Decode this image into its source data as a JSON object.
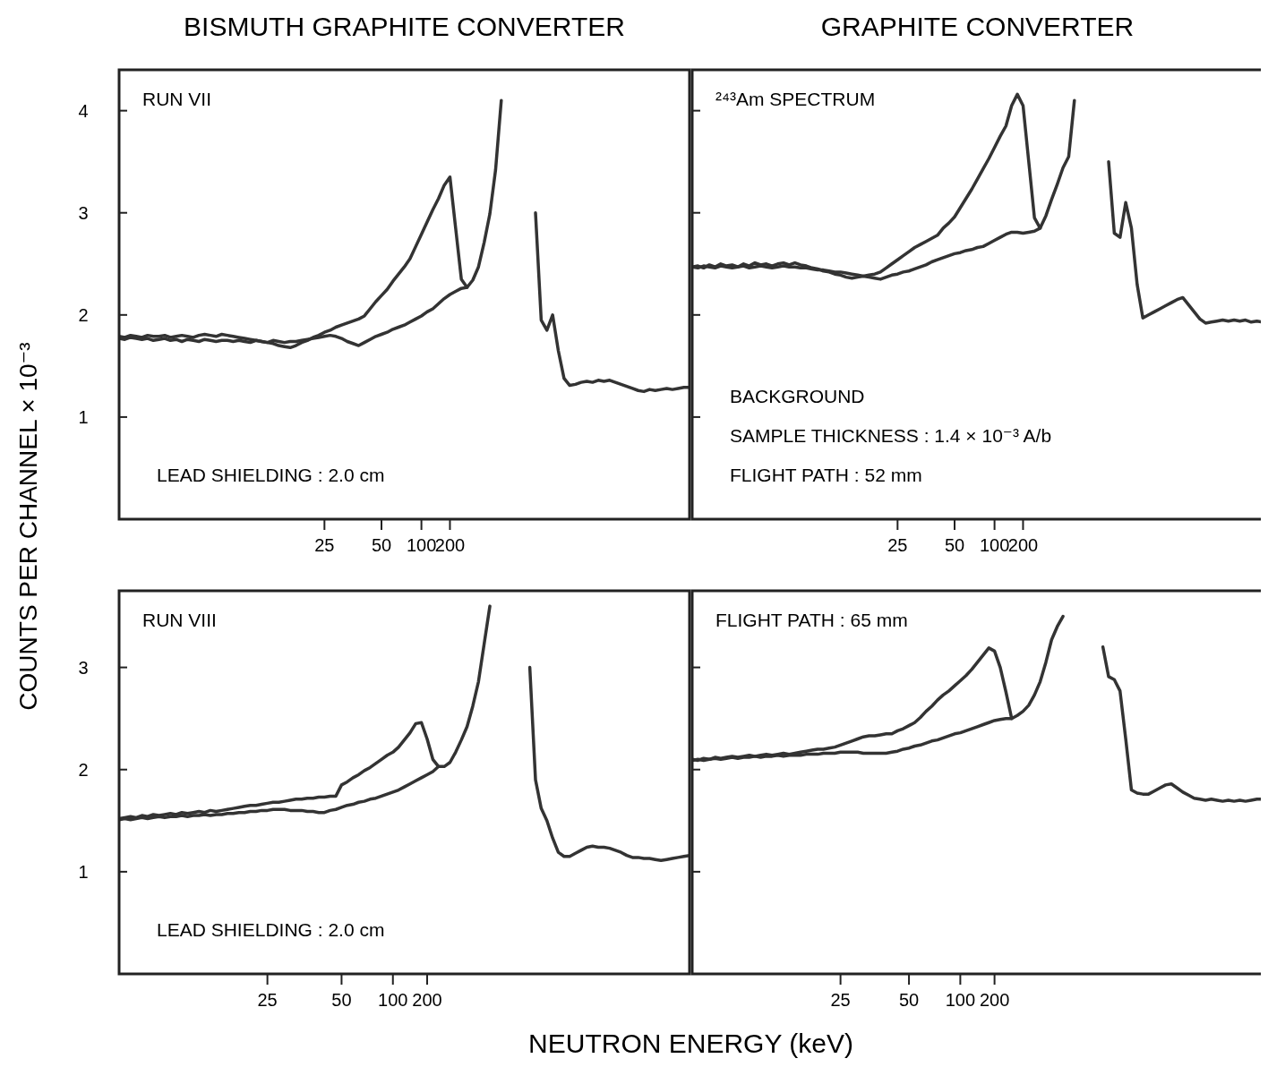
{
  "chart_data": [
    {
      "type": "line",
      "title": "BISMUTH GRAPHITE CONVERTER",
      "ylabel": "COUNTS PER CHANNEL   × 10⁻³",
      "annotations": [
        "RUN VII",
        "LEAD SHIELDING : 2.0 cm"
      ],
      "categories": [
        null,
        null,
        null,
        null,
        null,
        null,
        null,
        null,
        null,
        null,
        null,
        null,
        null,
        null,
        null,
        null,
        null,
        null,
        null,
        null,
        null,
        null,
        null,
        null,
        null,
        null,
        null,
        null,
        null,
        null,
        null,
        null,
        null,
        null,
        null,
        null,
        "25",
        null,
        null,
        null,
        null,
        null,
        null,
        null,
        null,
        null,
        "50",
        null,
        null,
        null,
        null,
        null,
        null,
        "100",
        null,
        null,
        null,
        null,
        "200",
        null,
        null,
        null,
        null,
        null,
        null,
        null,
        null,
        null,
        null,
        null,
        null,
        null,
        null,
        null,
        null,
        null,
        null,
        null,
        null,
        null,
        null,
        null,
        null,
        null,
        null,
        null,
        null,
        null,
        null,
        null,
        null,
        null,
        null,
        null,
        null,
        null,
        null,
        null,
        null,
        null,
        null
      ],
      "ylim": [
        0,
        4.4
      ],
      "yticks": [
        1,
        2,
        3,
        4
      ],
      "series": [
        {
          "color": "#333333",
          "values": [
            1.79,
            1.78,
            1.8,
            1.79,
            1.78,
            1.8,
            1.79,
            1.79,
            1.8,
            1.78,
            1.79,
            1.8,
            1.79,
            1.78,
            1.8,
            1.81,
            1.8,
            1.79,
            1.81,
            1.8,
            1.79,
            1.78,
            1.77,
            1.76,
            1.75,
            1.74,
            1.73,
            1.72,
            1.7,
            1.69,
            1.68,
            1.7,
            1.73,
            1.75,
            1.78,
            1.8,
            1.83,
            1.85,
            1.88,
            1.9,
            1.92,
            1.94,
            1.96,
            1.99,
            2.06,
            2.13,
            2.19,
            2.25,
            2.33,
            2.4,
            2.47,
            2.55,
            2.67,
            2.79,
            2.91,
            3.03,
            3.14,
            3.27,
            3.35,
            2.85,
            2.35,
            2.27,
            2.34,
            2.47,
            2.71,
            2.99,
            3.42,
            4.1,
            null,
            null,
            null,
            null,
            null,
            3.0,
            1.95,
            1.85,
            2.0,
            1.65,
            1.38,
            1.31,
            1.32,
            1.34,
            1.35,
            1.34,
            1.36,
            1.35,
            1.36,
            1.34,
            1.32,
            1.3,
            1.28,
            1.26,
            1.25,
            1.27,
            1.26,
            1.27,
            1.28,
            1.27,
            1.28,
            1.29,
            1.29
          ]
        },
        {
          "color": "#333333",
          "values": [
            1.77,
            1.76,
            1.78,
            1.77,
            1.76,
            1.77,
            1.75,
            1.76,
            1.77,
            1.75,
            1.76,
            1.74,
            1.76,
            1.75,
            1.74,
            1.76,
            1.75,
            1.74,
            1.75,
            1.75,
            1.74,
            1.75,
            1.74,
            1.73,
            1.75,
            1.74,
            1.73,
            1.75,
            1.74,
            1.73,
            1.74,
            1.74,
            1.75,
            1.76,
            1.77,
            1.78,
            1.79,
            1.8,
            1.79,
            1.77,
            1.74,
            1.72,
            1.7,
            1.73,
            1.76,
            1.79,
            1.81,
            1.83,
            1.86,
            1.88,
            1.9,
            1.93,
            1.96,
            1.99,
            2.03,
            2.06,
            2.11,
            2.16,
            2.2,
            2.23,
            2.26,
            2.27,
            null,
            null,
            null,
            null,
            null,
            null,
            null,
            null,
            null,
            null,
            null,
            null,
            null,
            null,
            null,
            null,
            null,
            null,
            null,
            null,
            null,
            null,
            null,
            null,
            null,
            null,
            null,
            null,
            null,
            null,
            null,
            null,
            null,
            null,
            null,
            null,
            null,
            null,
            null
          ]
        }
      ]
    },
    {
      "type": "line",
      "title": "GRAPHITE CONVERTER",
      "tick_labels": "x",
      "annotations": [
        "²⁴³Am SPECTRUM",
        "BACKGROUND",
        "SAMPLE THICKNESS : 1.4 × 10⁻³ A/b",
        "FLIGHT PATH : 52 mm"
      ],
      "categories": [
        null,
        null,
        null,
        null,
        null,
        null,
        null,
        null,
        null,
        null,
        null,
        null,
        null,
        null,
        null,
        null,
        null,
        null,
        null,
        null,
        null,
        null,
        null,
        null,
        null,
        null,
        null,
        null,
        null,
        null,
        null,
        null,
        null,
        null,
        null,
        null,
        "25",
        null,
        null,
        null,
        null,
        null,
        null,
        null,
        null,
        null,
        "50",
        null,
        null,
        null,
        null,
        null,
        null,
        "100",
        null,
        null,
        null,
        null,
        "200",
        null,
        null,
        null,
        null,
        null,
        null,
        null,
        null,
        null,
        null,
        null,
        null,
        null,
        null,
        null,
        null,
        null,
        null,
        null,
        null,
        null,
        null,
        null,
        null,
        null,
        null,
        null,
        null,
        null,
        null,
        null,
        null,
        null,
        null,
        null,
        null,
        null,
        null,
        null,
        null,
        null,
        null
      ],
      "ylim": [
        0,
        4.4
      ],
      "yticks": [
        1,
        2,
        3,
        4
      ],
      "series": [
        {
          "color": "#333333",
          "values": [
            2.47,
            2.48,
            2.46,
            2.49,
            2.47,
            2.5,
            2.48,
            2.49,
            2.47,
            2.5,
            2.48,
            2.51,
            2.49,
            2.5,
            2.48,
            2.5,
            2.51,
            2.49,
            2.51,
            2.49,
            2.48,
            2.46,
            2.45,
            2.43,
            2.42,
            2.4,
            2.39,
            2.37,
            2.36,
            2.37,
            2.38,
            2.39,
            2.4,
            2.42,
            2.46,
            2.5,
            2.54,
            2.58,
            2.62,
            2.66,
            2.69,
            2.72,
            2.75,
            2.78,
            2.85,
            2.9,
            2.96,
            3.05,
            3.14,
            3.23,
            3.33,
            3.43,
            3.53,
            3.64,
            3.75,
            3.85,
            4.05,
            4.16,
            4.05,
            3.5,
            2.95,
            2.85,
            2.97,
            3.13,
            3.28,
            3.44,
            3.55,
            4.1,
            null,
            null,
            null,
            null,
            null,
            3.5,
            2.8,
            2.76,
            3.1,
            2.85,
            2.3,
            1.97,
            2.0,
            2.03,
            2.06,
            2.09,
            2.12,
            2.15,
            2.17,
            2.1,
            2.03,
            1.96,
            1.92,
            1.93,
            1.94,
            1.95,
            1.94,
            1.95,
            1.94,
            1.95,
            1.93,
            1.94,
            1.93
          ]
        },
        {
          "color": "#333333",
          "values": [
            2.47,
            2.46,
            2.48,
            2.47,
            2.46,
            2.48,
            2.47,
            2.46,
            2.47,
            2.48,
            2.46,
            2.47,
            2.48,
            2.47,
            2.46,
            2.47,
            2.48,
            2.47,
            2.47,
            2.46,
            2.46,
            2.45,
            2.44,
            2.44,
            2.43,
            2.42,
            2.42,
            2.41,
            2.4,
            2.39,
            2.38,
            2.37,
            2.36,
            2.35,
            2.37,
            2.39,
            2.4,
            2.42,
            2.43,
            2.45,
            2.47,
            2.49,
            2.52,
            2.54,
            2.56,
            2.58,
            2.6,
            2.61,
            2.63,
            2.64,
            2.66,
            2.67,
            2.7,
            2.73,
            2.76,
            2.79,
            2.81,
            2.81,
            2.8,
            2.81,
            2.82,
            2.85,
            null,
            null,
            null,
            null,
            null,
            null,
            null,
            null,
            null,
            null,
            null,
            null,
            null,
            null,
            null,
            null,
            null,
            null,
            null,
            null,
            null,
            null,
            null,
            null,
            null,
            null,
            null,
            null,
            null,
            null,
            null,
            null,
            null,
            null,
            null,
            null,
            null,
            null,
            null
          ]
        }
      ]
    },
    {
      "type": "line",
      "xlabel": "NEUTRON ENERGY  (keV)",
      "annotations": [
        "RUN VIII",
        "LEAD SHIELDING : 2.0 cm"
      ],
      "categories": [
        null,
        null,
        null,
        null,
        null,
        null,
        null,
        null,
        null,
        null,
        null,
        null,
        null,
        null,
        null,
        null,
        null,
        null,
        null,
        null,
        null,
        null,
        null,
        null,
        null,
        null,
        "25",
        null,
        null,
        null,
        null,
        null,
        null,
        null,
        null,
        null,
        null,
        null,
        null,
        "50",
        null,
        null,
        null,
        null,
        null,
        null,
        null,
        null,
        "100",
        null,
        null,
        null,
        null,
        null,
        "200",
        null,
        null,
        null,
        null,
        null,
        null,
        null,
        null,
        null,
        null,
        null,
        null,
        null,
        null,
        null,
        null,
        null,
        null,
        null,
        null,
        null,
        null,
        null,
        null,
        null,
        null,
        null,
        null,
        null,
        null,
        null,
        null,
        null,
        null,
        null,
        null,
        null,
        null,
        null,
        null,
        null,
        null,
        null,
        null,
        null,
        null
      ],
      "ylim": [
        0,
        3.75
      ],
      "yticks": [
        1,
        2,
        3
      ],
      "series": [
        {
          "color": "#333333",
          "values": [
            1.52,
            1.53,
            1.54,
            1.53,
            1.55,
            1.54,
            1.56,
            1.55,
            1.56,
            1.57,
            1.56,
            1.58,
            1.57,
            1.58,
            1.59,
            1.58,
            1.6,
            1.59,
            1.6,
            1.61,
            1.62,
            1.63,
            1.64,
            1.65,
            1.65,
            1.66,
            1.67,
            1.68,
            1.68,
            1.69,
            1.7,
            1.71,
            1.71,
            1.72,
            1.72,
            1.73,
            1.73,
            1.74,
            1.74,
            1.85,
            1.88,
            1.92,
            1.95,
            1.99,
            2.02,
            2.06,
            2.1,
            2.14,
            2.17,
            2.22,
            2.29,
            2.36,
            2.45,
            2.46,
            2.3,
            2.1,
            2.03,
            2.03,
            2.07,
            2.17,
            2.29,
            2.42,
            2.62,
            2.86,
            3.23,
            3.6,
            null,
            null,
            null,
            null,
            null,
            null,
            3.0,
            1.9,
            1.62,
            1.5,
            1.33,
            1.19,
            1.15,
            1.15,
            1.18,
            1.21,
            1.24,
            1.25,
            1.24,
            1.24,
            1.23,
            1.21,
            1.19,
            1.16,
            1.14,
            1.14,
            1.13,
            1.13,
            1.12,
            1.11,
            1.12,
            1.13,
            1.14,
            1.15,
            1.16
          ]
        },
        {
          "color": "#333333",
          "values": [
            1.51,
            1.52,
            1.51,
            1.52,
            1.53,
            1.52,
            1.53,
            1.54,
            1.53,
            1.54,
            1.54,
            1.55,
            1.54,
            1.55,
            1.55,
            1.56,
            1.55,
            1.56,
            1.56,
            1.57,
            1.57,
            1.58,
            1.58,
            1.59,
            1.59,
            1.6,
            1.6,
            1.61,
            1.61,
            1.61,
            1.6,
            1.6,
            1.6,
            1.59,
            1.59,
            1.58,
            1.58,
            1.6,
            1.61,
            1.63,
            1.65,
            1.66,
            1.68,
            1.69,
            1.71,
            1.72,
            1.74,
            1.76,
            1.78,
            1.8,
            1.83,
            1.86,
            1.89,
            1.92,
            1.95,
            1.98,
            2.03,
            null,
            null,
            null,
            null,
            null,
            null,
            null,
            null,
            null,
            null,
            null,
            null,
            null,
            null,
            null,
            null,
            null,
            null,
            null,
            null,
            null,
            null,
            null,
            null,
            null,
            null,
            null,
            null,
            null,
            null,
            null,
            null,
            null,
            null,
            null,
            null,
            null,
            null,
            null,
            null,
            null,
            null,
            null,
            null
          ]
        }
      ]
    },
    {
      "type": "line",
      "tick_labels": "x",
      "annotations": [
        "FLIGHT PATH : 65 mm"
      ],
      "categories": [
        null,
        null,
        null,
        null,
        null,
        null,
        null,
        null,
        null,
        null,
        null,
        null,
        null,
        null,
        null,
        null,
        null,
        null,
        null,
        null,
        null,
        null,
        null,
        null,
        null,
        null,
        "25",
        null,
        null,
        null,
        null,
        null,
        null,
        null,
        null,
        null,
        null,
        null,
        "50",
        null,
        null,
        null,
        null,
        null,
        null,
        null,
        null,
        "100",
        null,
        null,
        null,
        null,
        null,
        "200",
        null,
        null,
        null,
        null,
        null,
        null,
        null,
        null,
        null,
        null,
        null,
        null,
        null,
        null,
        null,
        null,
        null,
        null,
        null,
        null,
        null,
        null,
        null,
        null,
        null,
        null,
        null,
        null,
        null,
        null,
        null,
        null,
        null,
        null,
        null,
        null,
        null,
        null,
        null,
        null,
        null,
        null,
        null,
        null,
        null,
        null,
        null
      ],
      "ylim": [
        0,
        3.75
      ],
      "yticks": [
        1,
        2,
        3
      ],
      "series": [
        {
          "color": "#333333",
          "values": [
            2.1,
            2.09,
            2.11,
            2.1,
            2.12,
            2.11,
            2.12,
            2.13,
            2.12,
            2.13,
            2.14,
            2.13,
            2.14,
            2.15,
            2.14,
            2.15,
            2.16,
            2.15,
            2.16,
            2.17,
            2.18,
            2.19,
            2.2,
            2.2,
            2.21,
            2.22,
            2.24,
            2.26,
            2.28,
            2.3,
            2.32,
            2.33,
            2.33,
            2.34,
            2.35,
            2.35,
            2.38,
            2.4,
            2.43,
            2.46,
            2.51,
            2.57,
            2.62,
            2.68,
            2.73,
            2.77,
            2.82,
            2.87,
            2.92,
            2.98,
            3.05,
            3.12,
            3.19,
            3.16,
            3.0,
            2.76,
            2.5,
            2.53,
            2.57,
            2.63,
            2.73,
            2.86,
            3.05,
            3.27,
            3.4,
            3.5,
            null,
            null,
            null,
            null,
            null,
            null,
            3.2,
            2.91,
            2.88,
            2.77,
            2.3,
            1.8,
            1.77,
            1.76,
            1.76,
            1.79,
            1.82,
            1.85,
            1.86,
            1.82,
            1.78,
            1.75,
            1.72,
            1.71,
            1.7,
            1.71,
            1.7,
            1.69,
            1.7,
            1.69,
            1.7,
            1.69,
            1.7,
            1.71,
            1.71
          ]
        },
        {
          "color": "#333333",
          "values": [
            2.09,
            2.1,
            2.09,
            2.1,
            2.11,
            2.1,
            2.11,
            2.12,
            2.11,
            2.12,
            2.12,
            2.13,
            2.12,
            2.13,
            2.13,
            2.14,
            2.13,
            2.14,
            2.14,
            2.14,
            2.15,
            2.15,
            2.15,
            2.16,
            2.16,
            2.16,
            2.17,
            2.17,
            2.17,
            2.17,
            2.16,
            2.16,
            2.16,
            2.16,
            2.16,
            2.17,
            2.18,
            2.2,
            2.21,
            2.23,
            2.24,
            2.26,
            2.28,
            2.29,
            2.31,
            2.33,
            2.35,
            2.36,
            2.38,
            2.4,
            2.42,
            2.44,
            2.46,
            2.48,
            2.49,
            2.5,
            2.5,
            null,
            null,
            null,
            null,
            null,
            null,
            null,
            null,
            null,
            null,
            null,
            null,
            null,
            null,
            null,
            null,
            null,
            null,
            null,
            null,
            null,
            null,
            null,
            null,
            null,
            null,
            null,
            null,
            null,
            null,
            null,
            null,
            null,
            null,
            null,
            null,
            null,
            null,
            null,
            null,
            null,
            null,
            null,
            null
          ]
        }
      ]
    }
  ]
}
